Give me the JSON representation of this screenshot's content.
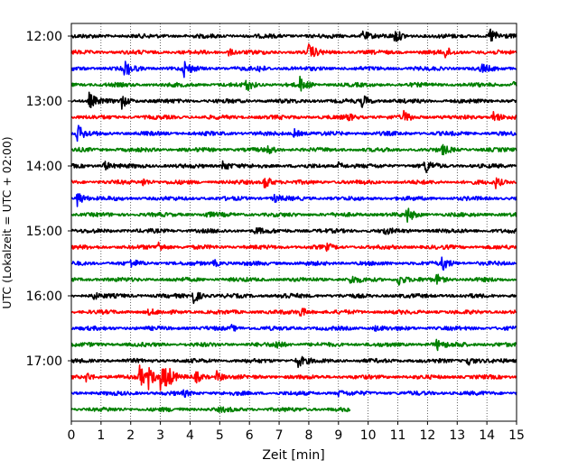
{
  "chart_data": {
    "type": "line",
    "title": "",
    "xlabel": "Zeit  [min]",
    "ylabel": "UTC (Lokalzeit = UTC + 02:00)",
    "xlim": [
      0,
      15
    ],
    "x_ticks": [
      "0",
      "1",
      "2",
      "3",
      "4",
      "5",
      "6",
      "7",
      "8",
      "9",
      "10",
      "11",
      "12",
      "13",
      "14",
      "15"
    ],
    "y_tick_labels": [
      "12:00",
      "13:00",
      "14:00",
      "15:00",
      "16:00",
      "17:00"
    ],
    "grid": "vertical dotted",
    "trace_colors": [
      "#000000",
      "#ff0000",
      "#0000ff",
      "#008000"
    ],
    "traces_per_hour": 4,
    "traces": [
      {
        "start": "12:00",
        "color": "#000000",
        "events": [
          [
            9.8,
            0.7
          ],
          [
            10.9,
            0.8
          ],
          [
            14.1,
            1.0
          ]
        ]
      },
      {
        "start": "12:15",
        "color": "#ff0000",
        "events": [
          [
            8.0,
            0.9
          ],
          [
            12.6,
            0.6
          ],
          [
            5.3,
            0.4
          ]
        ]
      },
      {
        "start": "12:30",
        "color": "#0000ff",
        "events": [
          [
            1.8,
            1.0
          ],
          [
            3.8,
            0.9
          ],
          [
            13.8,
            0.5
          ],
          [
            6.3,
            0.4
          ]
        ]
      },
      {
        "start": "12:45",
        "color": "#008000",
        "events": [
          [
            5.9,
            0.7
          ],
          [
            7.7,
            0.8
          ],
          [
            14.9,
            0.5
          ]
        ]
      },
      {
        "start": "13:00",
        "color": "#000000",
        "events": [
          [
            0.6,
            1.0
          ],
          [
            1.7,
            0.8
          ],
          [
            9.8,
            0.8
          ]
        ]
      },
      {
        "start": "13:15",
        "color": "#ff0000",
        "events": [
          [
            11.2,
            0.6
          ],
          [
            14.2,
            0.8
          ],
          [
            9.3,
            0.4
          ]
        ]
      },
      {
        "start": "13:30",
        "color": "#0000ff",
        "events": [
          [
            0.2,
            1.0
          ],
          [
            7.5,
            0.5
          ]
        ]
      },
      {
        "start": "13:45",
        "color": "#008000",
        "events": [
          [
            6.6,
            0.5
          ],
          [
            12.5,
            0.5
          ]
        ]
      },
      {
        "start": "14:00",
        "color": "#000000",
        "events": [
          [
            1.1,
            0.6
          ],
          [
            5.1,
            0.7
          ],
          [
            11.9,
            0.9
          ],
          [
            9.0,
            0.4
          ]
        ]
      },
      {
        "start": "14:15",
        "color": "#ff0000",
        "events": [
          [
            6.5,
            1.0
          ],
          [
            2.4,
            0.5
          ],
          [
            14.3,
            0.6
          ]
        ]
      },
      {
        "start": "14:30",
        "color": "#0000ff",
        "events": [
          [
            0.2,
            1.0
          ],
          [
            6.8,
            0.5
          ]
        ]
      },
      {
        "start": "14:45",
        "color": "#008000",
        "events": [
          [
            11.3,
            0.9
          ],
          [
            4.5,
            0.3
          ]
        ]
      },
      {
        "start": "15:00",
        "color": "#000000",
        "events": [
          [
            6.2,
            0.4
          ],
          [
            10.5,
            0.4
          ]
        ]
      },
      {
        "start": "15:15",
        "color": "#ff0000",
        "events": [
          [
            2.9,
            0.7
          ],
          [
            8.6,
            0.3
          ]
        ]
      },
      {
        "start": "15:30",
        "color": "#0000ff",
        "events": [
          [
            12.5,
            0.9
          ],
          [
            2.0,
            0.4
          ],
          [
            4.8,
            0.4
          ]
        ]
      },
      {
        "start": "15:45",
        "color": "#008000",
        "events": [
          [
            11.0,
            0.8
          ],
          [
            9.4,
            0.5
          ],
          [
            12.3,
            0.6
          ]
        ]
      },
      {
        "start": "16:00",
        "color": "#000000",
        "events": [
          [
            4.1,
            1.0
          ],
          [
            0.7,
            0.5
          ],
          [
            7.1,
            0.3
          ]
        ]
      },
      {
        "start": "16:15",
        "color": "#ff0000",
        "events": [
          [
            7.7,
            0.6
          ],
          [
            2.6,
            0.3
          ]
        ]
      },
      {
        "start": "16:30",
        "color": "#0000ff",
        "events": [
          [
            5.4,
            0.3
          ],
          [
            10.2,
            0.3
          ]
        ]
      },
      {
        "start": "16:45",
        "color": "#008000",
        "events": [
          [
            6.9,
            0.6
          ],
          [
            12.3,
            0.6
          ],
          [
            13.0,
            0.4
          ]
        ]
      },
      {
        "start": "17:00",
        "color": "#000000",
        "events": [
          [
            7.6,
            0.9
          ],
          [
            13.3,
            0.7
          ]
        ]
      },
      {
        "start": "17:15",
        "color": "#ff0000",
        "events": [
          [
            0.5,
            0.6
          ],
          [
            2.3,
            1.4
          ],
          [
            2.6,
            1.2
          ],
          [
            3.0,
            1.6
          ],
          [
            3.2,
            1.3
          ],
          [
            4.2,
            0.6
          ],
          [
            4.9,
            0.7
          ]
        ]
      },
      {
        "start": "17:30",
        "color": "#0000ff",
        "events": [
          [
            3.8,
            0.3
          ],
          [
            9.0,
            0.3
          ]
        ]
      },
      {
        "start": "17:45",
        "color": "#008000",
        "end_min": 9.4,
        "events": [
          [
            5.0,
            0.2
          ]
        ]
      }
    ]
  }
}
